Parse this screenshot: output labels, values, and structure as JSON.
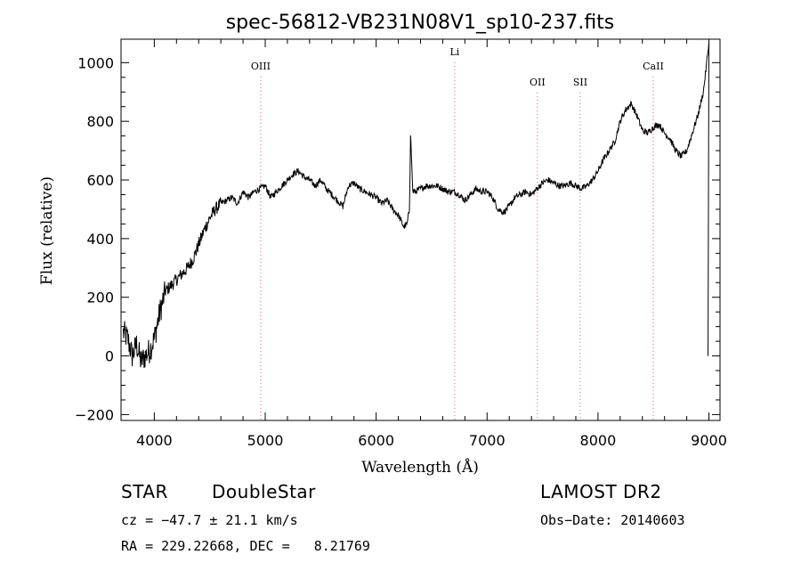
{
  "chart_data": {
    "type": "line",
    "title": "spec-56812-VB231N08V1_sp10-237.fits",
    "xlabel": "Wavelength (Å)",
    "ylabel": "Flux (relative)",
    "xlim": [
      3700,
      9100
    ],
    "ylim": [
      -220,
      1080
    ],
    "x_ticks": [
      4000,
      5000,
      6000,
      7000,
      8000,
      9000
    ],
    "y_ticks": [
      -200,
      0,
      200,
      400,
      600,
      800,
      1000
    ],
    "x_tick_labels": [
      "4000",
      "5000",
      "6000",
      "7000",
      "8000",
      "9000"
    ],
    "y_tick_labels": [
      "−200",
      "0",
      "200",
      "400",
      "600",
      "800",
      "1000"
    ],
    "grid": false,
    "line_color": "#000000",
    "marker_color": "#e06060",
    "lines": [
      {
        "label": "OIII",
        "x": 4959
      },
      {
        "label": "Li",
        "x": 6708
      },
      {
        "label": "OII",
        "x": 7454
      },
      {
        "label": "SII",
        "x": 7840
      },
      {
        "label": "CaII",
        "x": 8498
      }
    ],
    "series": [
      {
        "x": [
          3720,
          3760,
          3800,
          3840,
          3880,
          3920,
          3960,
          4000,
          4050,
          4100,
          4150,
          4200,
          4250,
          4300,
          4350,
          4400,
          4450,
          4500,
          4550,
          4600,
          4650,
          4700,
          4750,
          4800,
          4850,
          4900,
          4950,
          5000,
          5050,
          5100,
          5150,
          5200,
          5250,
          5300,
          5350,
          5400,
          5450,
          5500,
          5550,
          5600,
          5650,
          5700,
          5750,
          5800,
          5850,
          5900,
          5950,
          6000,
          6050,
          6100,
          6150,
          6200,
          6250,
          6280,
          6300,
          6310,
          6330,
          6350,
          6400,
          6450,
          6500,
          6550,
          6600,
          6650,
          6700,
          6750,
          6800,
          6850,
          6900,
          6950,
          7000,
          7050,
          7100,
          7150,
          7200,
          7250,
          7300,
          7350,
          7400,
          7450,
          7500,
          7550,
          7600,
          7650,
          7700,
          7750,
          7800,
          7850,
          7900,
          7950,
          8000,
          8050,
          8100,
          8150,
          8200,
          8250,
          8300,
          8350,
          8400,
          8450,
          8500,
          8550,
          8600,
          8650,
          8700,
          8750,
          8800,
          8850,
          8900,
          8950,
          8980,
          9000
        ],
        "y": [
          80,
          60,
          0,
          40,
          -20,
          0,
          20,
          60,
          150,
          220,
          240,
          260,
          280,
          300,
          330,
          380,
          430,
          470,
          500,
          520,
          530,
          540,
          520,
          560,
          540,
          560,
          570,
          580,
          540,
          560,
          580,
          600,
          620,
          630,
          610,
          600,
          580,
          600,
          570,
          550,
          530,
          510,
          580,
          590,
          570,
          560,
          550,
          540,
          520,
          530,
          500,
          480,
          440,
          450,
          500,
          760,
          560,
          560,
          570,
          580,
          580,
          580,
          570,
          560,
          560,
          550,
          530,
          550,
          570,
          560,
          560,
          540,
          500,
          490,
          510,
          540,
          550,
          560,
          550,
          570,
          590,
          600,
          590,
          580,
          580,
          590,
          580,
          570,
          580,
          600,
          630,
          670,
          700,
          730,
          800,
          840,
          860,
          820,
          770,
          760,
          780,
          790,
          760,
          740,
          700,
          680,
          700,
          760,
          820,
          900,
          1000,
          1070
        ]
      }
    ]
  },
  "footer": {
    "object_class": "STAR",
    "subclass": "DoubleStar",
    "survey": "LAMOST DR2",
    "cz": "cz = −47.7 ± 21.1 km/s",
    "obs_date": "Obs−Date: 20140603",
    "coords": "RA = 229.22668, DEC =   8.21769"
  }
}
